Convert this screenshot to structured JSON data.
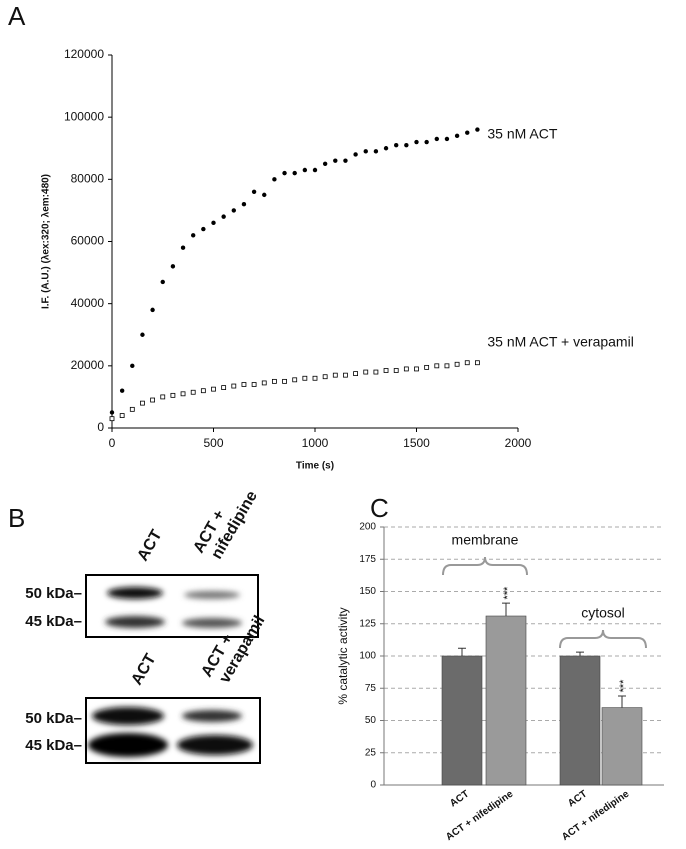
{
  "chart_data": [
    {
      "type": "scatter",
      "panel": "A",
      "x_label": "Time (s)",
      "y_label": "I.F. (A.U.) (λex:320; λem:480)",
      "xlim": [
        0,
        2000
      ],
      "xticks": [
        0,
        500,
        1000,
        1500,
        2000
      ],
      "ylim": [
        0,
        120000
      ],
      "yticks": [
        0,
        20000,
        40000,
        60000,
        80000,
        100000,
        120000
      ],
      "grid": false,
      "x": [
        0,
        50,
        100,
        150,
        200,
        250,
        300,
        350,
        400,
        450,
        500,
        550,
        600,
        650,
        700,
        750,
        800,
        850,
        900,
        950,
        1000,
        1050,
        1100,
        1150,
        1200,
        1250,
        1300,
        1350,
        1400,
        1450,
        1500,
        1550,
        1600,
        1650,
        1700,
        1750,
        1800
      ],
      "series": [
        {
          "name": "35 nM ACT",
          "color": "#000000",
          "marker": "filled-circle",
          "values": [
            5000,
            12000,
            20000,
            30000,
            38000,
            47000,
            52000,
            58000,
            62000,
            64000,
            66000,
            68000,
            70000,
            72000,
            76000,
            75000,
            80000,
            82000,
            82000,
            83000,
            83000,
            85000,
            86000,
            86000,
            88000,
            89000,
            89000,
            90000,
            91000,
            91000,
            92000,
            92000,
            93000,
            93000,
            94000,
            95000,
            96000
          ]
        },
        {
          "name": "35 nM ACT + verapamil",
          "color": "#000000",
          "marker": "open-square",
          "values": [
            3000,
            4000,
            6000,
            8000,
            9000,
            10000,
            10500,
            11000,
            11500,
            12000,
            12500,
            13000,
            13500,
            14000,
            14000,
            14500,
            15000,
            15000,
            15500,
            16000,
            16000,
            16500,
            17000,
            17000,
            17500,
            18000,
            18000,
            18500,
            18500,
            19000,
            19000,
            19500,
            20000,
            20000,
            20500,
            21000,
            21000
          ]
        }
      ]
    },
    {
      "type": "bar",
      "panel": "C",
      "y_label": "% catalytic activity",
      "categories": [
        "ACT",
        "ACT + nifedipine",
        "ACT",
        "ACT + nifedipine"
      ],
      "values": [
        100,
        131,
        100,
        60
      ],
      "errors": [
        6,
        10,
        3,
        9
      ],
      "colors": [
        "#6b6b6b",
        "#9a9a9a",
        "#6b6b6b",
        "#9a9a9a"
      ],
      "significance": [
        null,
        "***",
        null,
        "***"
      ],
      "group_labels": [
        "membrane",
        "cytosol"
      ],
      "ylim": [
        0,
        200
      ],
      "yticks": [
        0,
        25,
        50,
        75,
        100,
        125,
        150,
        175,
        200
      ],
      "grid": true
    }
  ],
  "panel_b": {
    "label": "B",
    "blots": [
      {
        "lane_labels": [
          "ACT",
          "ACT +",
          "nifedipine"
        ],
        "markers": [
          "50 kDa–",
          "45 kDa–"
        ]
      },
      {
        "lane_labels": [
          "ACT",
          "ACT +",
          "verapamil"
        ],
        "markers": [
          "50 kDa–",
          "45 kDa–"
        ]
      }
    ]
  }
}
